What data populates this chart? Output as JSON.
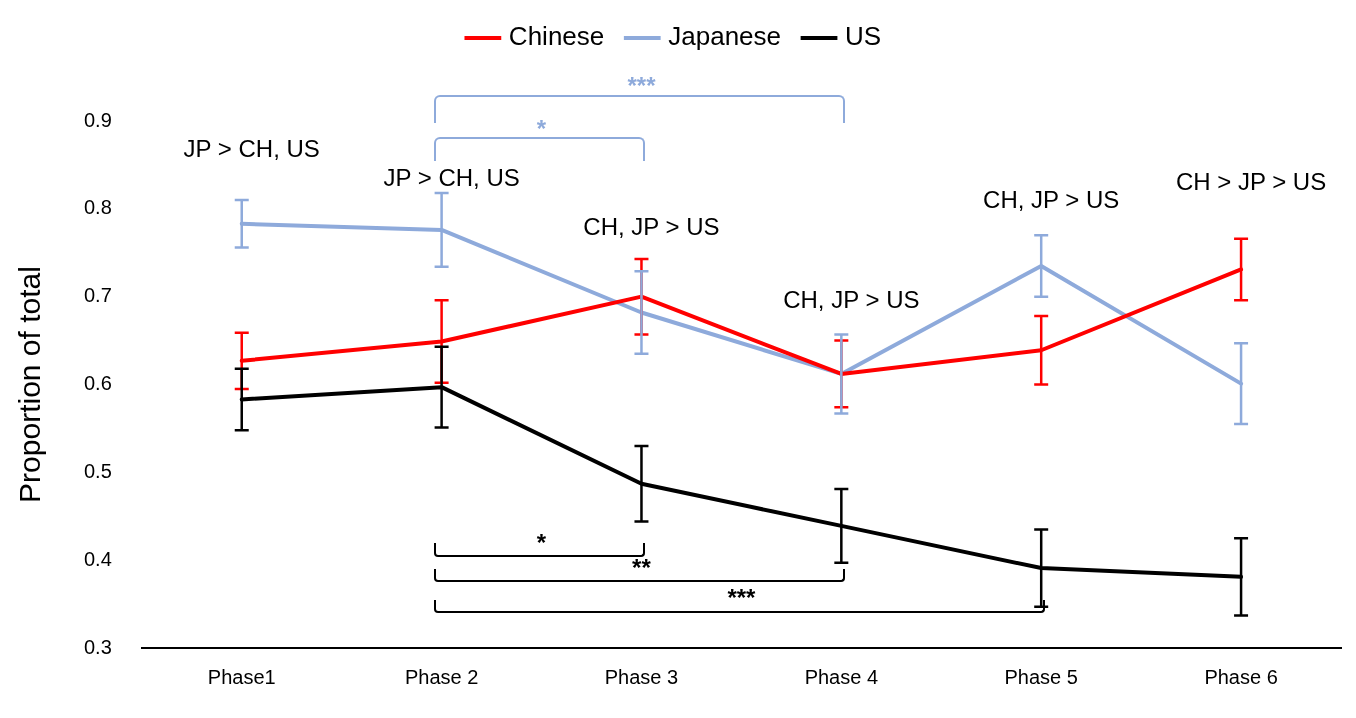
{
  "chart_data": {
    "type": "line",
    "ylabel": "Proportion of total",
    "categories": [
      "Phase1",
      "Phase 2",
      "Phase 3",
      "Phase 4",
      "Phase 5",
      "Phase 6"
    ],
    "series": [
      {
        "name": "Chinese",
        "color": "#ff0000",
        "values": [
          0.627,
          0.649,
          0.7,
          0.612,
          0.639,
          0.731
        ],
        "errors": [
          0.032,
          0.047,
          0.043,
          0.038,
          0.039,
          0.035
        ]
      },
      {
        "name": "Japanese",
        "color": "#8eaadb",
        "values": [
          0.783,
          0.776,
          0.682,
          0.612,
          0.735,
          0.601
        ],
        "errors": [
          0.027,
          0.042,
          0.047,
          0.045,
          0.035,
          0.046
        ]
      },
      {
        "name": "US",
        "color": "#000000",
        "values": [
          0.583,
          0.597,
          0.487,
          0.439,
          0.391,
          0.381
        ],
        "errors": [
          0.035,
          0.046,
          0.043,
          0.042,
          0.044,
          0.044
        ]
      }
    ],
    "ylim": [
      0.3,
      0.9
    ],
    "yticks": [
      0.3,
      0.4,
      0.5,
      0.6,
      0.7,
      0.8,
      0.9
    ],
    "grid": false,
    "legend": "top",
    "marker": "none",
    "line_style": "solid",
    "annotations": [
      "JP > CH, US",
      "JP > CH, US",
      "CH, JP > US",
      "CH, JP > US",
      "CH, JP > US",
      "CH > JP > US",
      "***",
      "*",
      "*",
      "**",
      "***"
    ]
  }
}
